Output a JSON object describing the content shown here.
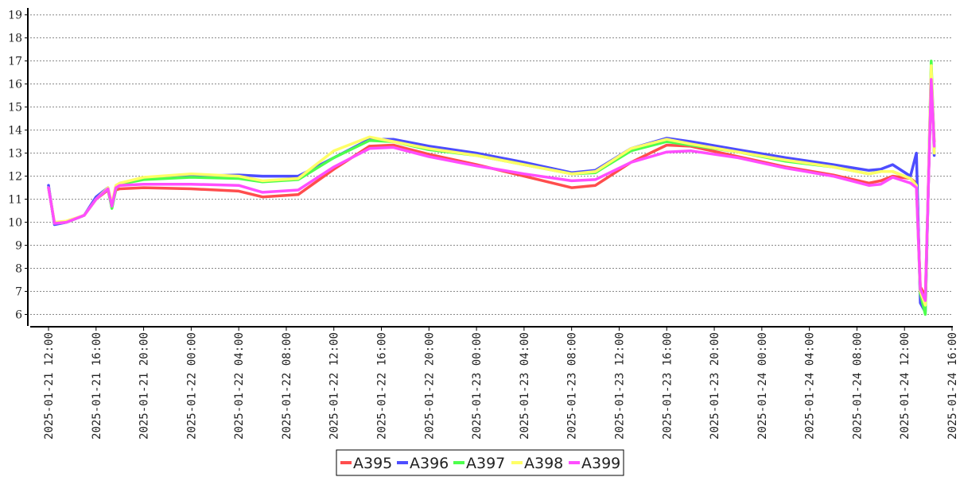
{
  "chart_data": {
    "type": "line",
    "title": "",
    "xlabel": "",
    "ylabel": "",
    "ylim": [
      5.5,
      19.3
    ],
    "yticks": [
      6,
      7,
      8,
      9,
      10,
      11,
      12,
      13,
      14,
      15,
      16,
      17,
      18,
      19
    ],
    "grid": true,
    "legend_placement": "bottom-center",
    "x_tick_labels": [
      "2025-01-21 12:00",
      "2025-01-21 16:00",
      "2025-01-21 20:00",
      "2025-01-22 00:00",
      "2025-01-22 04:00",
      "2025-01-22 08:00",
      "2025-01-22 12:00",
      "2025-01-22 16:00",
      "2025-01-22 20:00",
      "2025-01-23 00:00",
      "2025-01-23 04:00",
      "2025-01-23 08:00",
      "2025-01-23 12:00",
      "2025-01-23 16:00",
      "2025-01-23 20:00",
      "2025-01-24 00:00",
      "2025-01-24 04:00",
      "2025-01-24 08:00",
      "2025-01-24 12:00",
      "2025-01-24 16:00"
    ],
    "x": [
      "2025-01-21 12:00",
      "2025-01-21 12:30",
      "2025-01-21 13:30",
      "2025-01-21 15:00",
      "2025-01-21 16:00",
      "2025-01-21 17:00",
      "2025-01-21 17:20",
      "2025-01-21 17:40",
      "2025-01-21 18:00",
      "2025-01-21 20:00",
      "2025-01-22 00:00",
      "2025-01-22 04:00",
      "2025-01-22 06:00",
      "2025-01-22 09:00",
      "2025-01-22 12:00",
      "2025-01-22 15:00",
      "2025-01-22 17:00",
      "2025-01-22 20:00",
      "2025-01-23 00:00",
      "2025-01-23 04:00",
      "2025-01-23 08:00",
      "2025-01-23 10:00",
      "2025-01-23 13:00",
      "2025-01-23 16:00",
      "2025-01-23 18:00",
      "2025-01-23 22:00",
      "2025-01-24 02:00",
      "2025-01-24 06:00",
      "2025-01-24 09:00",
      "2025-01-24 10:00",
      "2025-01-24 11:00",
      "2025-01-24 12:30",
      "2025-01-24 13:00",
      "2025-01-24 13:20",
      "2025-01-24 13:45",
      "2025-01-24 14:15",
      "2025-01-24 14:30"
    ],
    "series": [
      {
        "name": "A395",
        "color": "#ff4d4d",
        "values": [
          11.5,
          9.95,
          10.0,
          10.3,
          11.0,
          11.4,
          10.7,
          11.4,
          11.45,
          11.5,
          11.45,
          11.35,
          11.1,
          11.2,
          12.3,
          13.3,
          13.35,
          12.95,
          12.5,
          12.0,
          11.5,
          11.6,
          12.6,
          13.35,
          13.3,
          12.85,
          12.4,
          12.05,
          11.7,
          11.8,
          12.0,
          11.9,
          11.7,
          7.2,
          6.8,
          16.1,
          13.5
        ]
      },
      {
        "name": "A396",
        "color": "#4d4dff",
        "values": [
          11.6,
          9.9,
          10.0,
          10.3,
          11.1,
          11.5,
          10.7,
          11.5,
          11.7,
          11.9,
          12.0,
          12.05,
          12.0,
          12.0,
          12.8,
          13.6,
          13.6,
          13.3,
          13.0,
          12.6,
          12.15,
          12.25,
          13.2,
          13.65,
          13.5,
          13.15,
          12.8,
          12.5,
          12.25,
          12.3,
          12.5,
          12.0,
          13.0,
          6.5,
          6.1,
          16.7,
          12.9
        ]
      },
      {
        "name": "A397",
        "color": "#4dff4d",
        "values": [
          11.5,
          9.95,
          10.0,
          10.3,
          11.0,
          11.45,
          10.6,
          11.45,
          11.65,
          11.85,
          11.95,
          11.9,
          11.75,
          11.85,
          12.8,
          13.55,
          13.5,
          13.15,
          12.9,
          12.5,
          12.1,
          12.15,
          13.1,
          13.5,
          13.35,
          13.05,
          12.65,
          12.4,
          12.1,
          12.2,
          12.2,
          11.9,
          11.6,
          6.9,
          6.0,
          17.0,
          13.2
        ]
      },
      {
        "name": "A398",
        "color": "#ffff66",
        "values": [
          11.5,
          10.0,
          10.05,
          10.3,
          11.0,
          11.5,
          10.8,
          11.6,
          11.7,
          11.95,
          12.1,
          12.0,
          11.8,
          11.9,
          13.1,
          13.7,
          13.5,
          13.2,
          12.9,
          12.5,
          12.1,
          12.2,
          13.2,
          13.6,
          13.4,
          13.05,
          12.7,
          12.4,
          12.1,
          12.2,
          12.2,
          11.9,
          11.6,
          7.0,
          6.4,
          16.8,
          13.0
        ]
      },
      {
        "name": "A399",
        "color": "#ff4dff",
        "values": [
          11.5,
          9.95,
          10.0,
          10.3,
          11.0,
          11.45,
          10.7,
          11.5,
          11.6,
          11.65,
          11.65,
          11.6,
          11.3,
          11.4,
          12.4,
          13.2,
          13.25,
          12.85,
          12.45,
          12.1,
          11.8,
          11.85,
          12.6,
          13.05,
          13.1,
          12.8,
          12.35,
          12.0,
          11.6,
          11.65,
          11.95,
          11.7,
          11.5,
          7.1,
          6.6,
          16.2,
          13.3
        ]
      }
    ]
  }
}
